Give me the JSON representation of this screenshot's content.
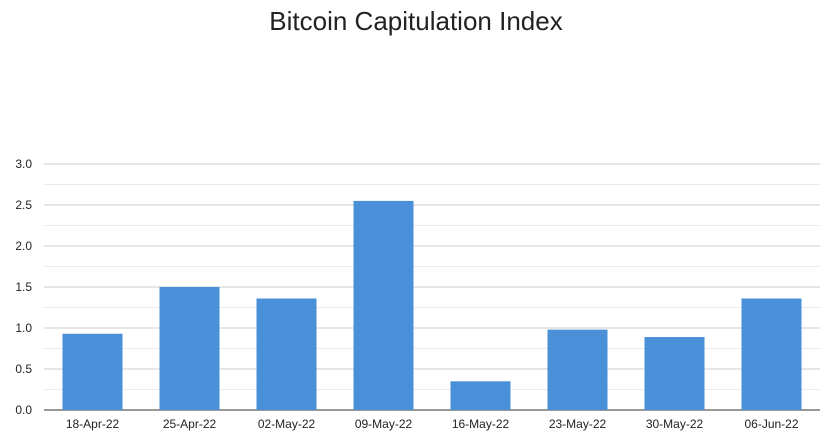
{
  "chart_data": {
    "type": "bar",
    "title": "Bitcoin Capitulation Index",
    "xlabel": "",
    "ylabel": "",
    "categories": [
      "18-Apr-22",
      "25-Apr-22",
      "02-May-22",
      "09-May-22",
      "16-May-22",
      "23-May-22",
      "30-May-22",
      "06-Jun-22"
    ],
    "values": [
      0.93,
      1.5,
      1.36,
      2.55,
      0.35,
      0.98,
      0.89,
      1.36
    ],
    "ylim": [
      0,
      3.0
    ],
    "yticks": [
      "0.0",
      "0.5",
      "1.0",
      "1.5",
      "2.0",
      "2.5",
      "3.0"
    ],
    "grid": true,
    "minor_grid": true,
    "legend": "none",
    "bar_color": "#4a90d9",
    "grid_color": "#cccccc",
    "minor_grid_color": "#ebebeb"
  }
}
